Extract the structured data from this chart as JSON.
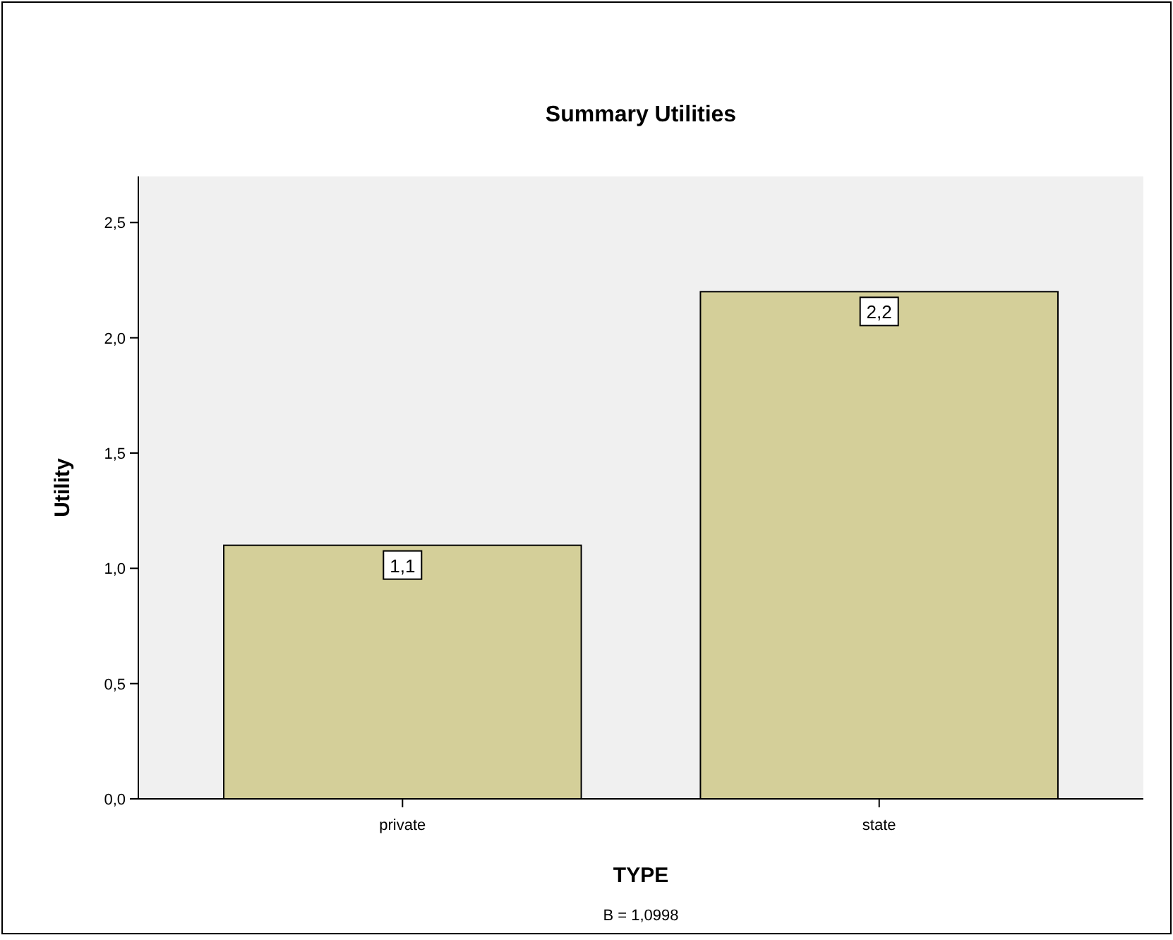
{
  "chart_data": {
    "type": "bar",
    "title": "Summary Utilities",
    "xlabel": "TYPE",
    "ylabel": "Utility",
    "categories": [
      "private",
      "state"
    ],
    "values": [
      1.1,
      2.2
    ],
    "value_labels": [
      "1,1",
      "2,2"
    ],
    "color": "#d4cf99",
    "ylim": [
      0,
      2.7
    ],
    "yticks": [
      {
        "value": 0,
        "label": "0,0"
      },
      {
        "value": 0.5,
        "label": "0,5"
      },
      {
        "value": 1,
        "label": "1,0"
      },
      {
        "value": 1.5,
        "label": "1,5"
      },
      {
        "value": 2,
        "label": "2,0"
      },
      {
        "value": 2.5,
        "label": "2,5"
      }
    ],
    "grid": false,
    "annotations": [
      "B = 1,0998"
    ]
  }
}
